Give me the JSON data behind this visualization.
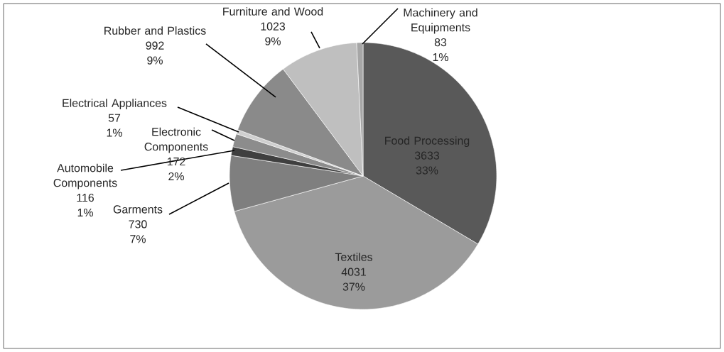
{
  "chart_data": {
    "type": "pie",
    "categories": [
      "Food Processing",
      "Textiles",
      "Garments",
      "Automobile Components",
      "Electronic Components",
      "Electrical Appliances",
      "Rubber and Plastics",
      "Furniture and Wood",
      "Machinery and Equipments"
    ],
    "values": [
      3633,
      4031,
      730,
      116,
      172,
      57,
      992,
      1023,
      83
    ],
    "colors": [
      "#595959",
      "#9b9b9b",
      "#7f7f7f",
      "#3f3f3f",
      "#8c8c8c",
      "#cfcfcf",
      "#8a8a8a",
      "#bfbfbf",
      "#a6a6a6"
    ],
    "value_labels": [
      "3633 33%",
      "4031 37%",
      "730 7%",
      "116 1%",
      "172 2%",
      "57 1%",
      "992 9%",
      "1023 9%",
      "83 1%"
    ]
  }
}
